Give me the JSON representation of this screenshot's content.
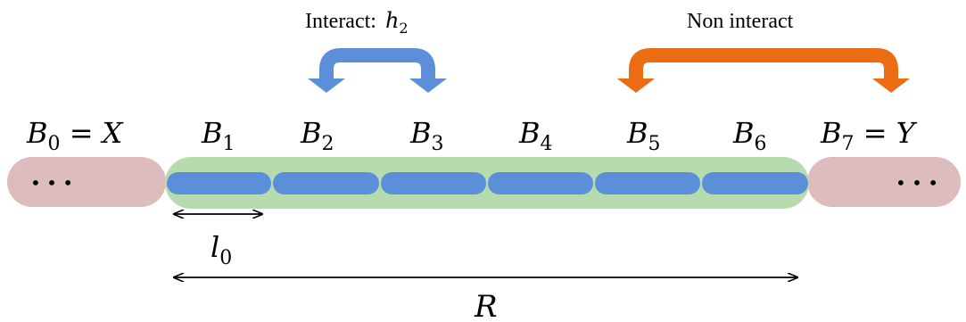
{
  "labels": {
    "interact_text": "Interact:",
    "interact_sym": "h",
    "interact_sub": "2",
    "non_interact": "Non interact",
    "l0_sym": "l",
    "l0_sub": "0",
    "R": "R",
    "ellipsis_left": "• • •",
    "ellipsis_right": "• • •"
  },
  "blocks": [
    {
      "name": "B",
      "sub": "0",
      "suffix": " = X"
    },
    {
      "name": "B",
      "sub": "1",
      "suffix": ""
    },
    {
      "name": "B",
      "sub": "2",
      "suffix": ""
    },
    {
      "name": "B",
      "sub": "3",
      "suffix": ""
    },
    {
      "name": "B",
      "sub": "4",
      "suffix": ""
    },
    {
      "name": "B",
      "sub": "5",
      "suffix": ""
    },
    {
      "name": "B",
      "sub": "6",
      "suffix": ""
    },
    {
      "name": "B",
      "sub": "7",
      "suffix": " = Y"
    }
  ],
  "colors": {
    "outer_region": "#dcbcbc",
    "middle_region": "#b6dbae",
    "segment": "#5b8fd9",
    "interact_arrow": "#5b8fd9",
    "non_interact_arrow": "#ec6c14"
  }
}
